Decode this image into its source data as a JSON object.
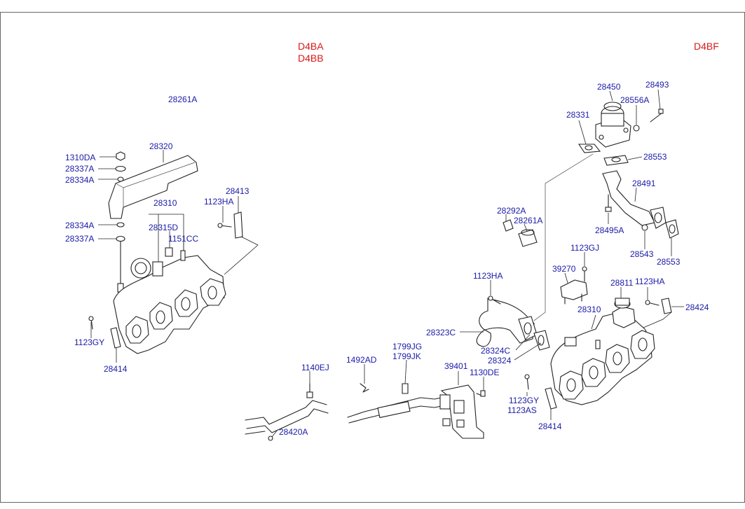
{
  "variants": {
    "left_line1": "D4BA",
    "left_line2": "D4BB",
    "right": "D4BF"
  },
  "parts": {
    "p28261A_left": "28261A",
    "p1310DA": "1310DA",
    "p28320": "28320",
    "p28337A_top": "28337A",
    "p28334A_top": "28334A",
    "p28310_left": "28310",
    "p28413": "28413",
    "p1123HA_left": "1123HA",
    "p28315D": "28315D",
    "p28334A_bot": "28334A",
    "p1151CC": "1151CC",
    "p28337A_bot": "28337A",
    "p1123GY_left": "1123GY",
    "p28414_left": "28414",
    "p28450": "28450",
    "p28493": "28493",
    "p28556A": "28556A",
    "p28331": "28331",
    "p28553_top": "28553",
    "p28491": "28491",
    "p28292A": "28292A",
    "p28261A_right": "28261A",
    "p28495A": "28495A",
    "p28543": "28543",
    "p28553_bot": "28553",
    "p1123GJ": "1123GJ",
    "p39270": "39270",
    "p1123HA_mid": "1123HA",
    "p28811": "28811",
    "p1123HA_right": "1123HA",
    "p28424": "28424",
    "p28310_right": "28310",
    "p28323C": "28323C",
    "p28324C": "28324C",
    "p28324": "28324",
    "p1492AD": "1492AD",
    "p1799JG": "1799JG",
    "p1799JK": "1799JK",
    "p39401": "39401",
    "p1140EJ": "1140EJ",
    "p1130DE": "1130DE",
    "p1123GY_right": "1123GY",
    "p1123AS": "1123AS",
    "p28414_right": "28414",
    "p28420A": "28420A"
  },
  "colors": {
    "part_label": "#1a1aa8",
    "variant_label": "#d81818",
    "line": "#222222"
  }
}
